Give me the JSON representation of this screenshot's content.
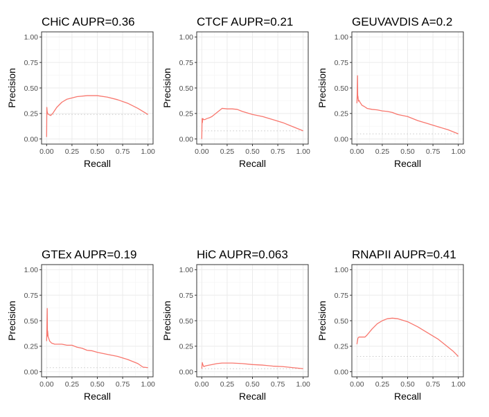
{
  "colors": {
    "curve": "#f8766d",
    "baseline": "#c8c8c8",
    "panel_border": "#333333",
    "grid_major": "#ebebeb",
    "grid_minor": "#f4f4f4",
    "axis_text": "#4d4d4d",
    "title_text": "#000000"
  },
  "chart_data": [
    {
      "type": "line",
      "title": "CHiC AUPR=0.36",
      "xlabel": "Recall",
      "ylabel": "Precision",
      "xlim": [
        0,
        1
      ],
      "ylim": [
        0,
        1
      ],
      "x_ticks": [
        "0.00",
        "0.25",
        "0.50",
        "0.75",
        "1.00"
      ],
      "y_ticks": [
        "0.00",
        "0.25",
        "0.50",
        "0.75",
        "1.00"
      ],
      "grid": true,
      "baseline_precision": 0.24,
      "series": [
        {
          "x": [
            0.0,
            0.002,
            0.005,
            0.01,
            0.02,
            0.04,
            0.06,
            0.08,
            0.1,
            0.15,
            0.2,
            0.3,
            0.4,
            0.5,
            0.6,
            0.7,
            0.8,
            0.9,
            1.0
          ],
          "y": [
            0.02,
            0.31,
            0.27,
            0.25,
            0.24,
            0.23,
            0.25,
            0.28,
            0.31,
            0.36,
            0.39,
            0.415,
            0.425,
            0.425,
            0.41,
            0.385,
            0.35,
            0.3,
            0.24
          ]
        }
      ]
    },
    {
      "type": "line",
      "title": "CTCF AUPR=0.21",
      "xlabel": "Recall",
      "ylabel": "Precision",
      "xlim": [
        0,
        1
      ],
      "ylim": [
        0,
        1
      ],
      "x_ticks": [
        "0.00",
        "0.25",
        "0.50",
        "0.75",
        "1.00"
      ],
      "y_ticks": [
        "0.00",
        "0.25",
        "0.50",
        "0.75",
        "1.00"
      ],
      "grid": true,
      "baseline_precision": 0.08,
      "series": [
        {
          "x": [
            0.0,
            0.003,
            0.006,
            0.01,
            0.02,
            0.03,
            0.05,
            0.08,
            0.1,
            0.15,
            0.2,
            0.25,
            0.3,
            0.35,
            0.4,
            0.5,
            0.6,
            0.7,
            0.8,
            0.9,
            1.0
          ],
          "y": [
            0.0,
            0.2,
            0.16,
            0.2,
            0.19,
            0.19,
            0.2,
            0.21,
            0.22,
            0.26,
            0.3,
            0.295,
            0.295,
            0.29,
            0.27,
            0.24,
            0.22,
            0.19,
            0.16,
            0.12,
            0.08
          ]
        }
      ]
    },
    {
      "type": "line",
      "title": "GEUVAVDIS A=0.2",
      "xlabel": "Recall",
      "ylabel": "Precision",
      "xlim": [
        0,
        1
      ],
      "ylim": [
        0,
        1
      ],
      "x_ticks": [
        "0.00",
        "0.25",
        "0.50",
        "0.75",
        "1.00"
      ],
      "y_ticks": [
        "0.00",
        "0.25",
        "0.50",
        "0.75",
        "1.00"
      ],
      "grid": true,
      "baseline_precision": 0.05,
      "series": [
        {
          "x": [
            0.0,
            0.003,
            0.006,
            0.008,
            0.01,
            0.015,
            0.02,
            0.03,
            0.05,
            0.07,
            0.1,
            0.15,
            0.2,
            0.25,
            0.3,
            0.35,
            0.4,
            0.5,
            0.6,
            0.7,
            0.8,
            0.9,
            1.0
          ],
          "y": [
            0.35,
            0.45,
            0.62,
            0.4,
            0.42,
            0.37,
            0.38,
            0.36,
            0.33,
            0.32,
            0.3,
            0.29,
            0.285,
            0.275,
            0.27,
            0.26,
            0.24,
            0.22,
            0.18,
            0.15,
            0.12,
            0.09,
            0.05
          ]
        }
      ]
    },
    {
      "type": "line",
      "title": "GTEx AUPR=0.19",
      "xlabel": "Recall",
      "ylabel": "Precision",
      "xlim": [
        0,
        1
      ],
      "ylim": [
        0,
        1
      ],
      "x_ticks": [
        "0.00",
        "0.25",
        "0.50",
        "0.75",
        "1.00"
      ],
      "y_ticks": [
        "0.00",
        "0.25",
        "0.50",
        "0.75",
        "1.00"
      ],
      "grid": true,
      "baseline_precision": 0.04,
      "series": [
        {
          "x": [
            0.0,
            0.003,
            0.006,
            0.008,
            0.01,
            0.015,
            0.02,
            0.03,
            0.05,
            0.08,
            0.1,
            0.15,
            0.2,
            0.25,
            0.3,
            0.35,
            0.4,
            0.45,
            0.5,
            0.6,
            0.7,
            0.8,
            0.9,
            0.95,
            1.0
          ],
          "y": [
            0.3,
            0.45,
            0.62,
            0.35,
            0.4,
            0.34,
            0.33,
            0.3,
            0.28,
            0.27,
            0.27,
            0.27,
            0.26,
            0.26,
            0.24,
            0.23,
            0.21,
            0.205,
            0.19,
            0.17,
            0.15,
            0.12,
            0.08,
            0.045,
            0.04
          ]
        }
      ]
    },
    {
      "type": "line",
      "title": "HiC AUPR=0.063",
      "xlabel": "Recall",
      "ylabel": "Precision",
      "xlim": [
        0,
        1
      ],
      "ylim": [
        0,
        1
      ],
      "x_ticks": [
        "0.00",
        "0.25",
        "0.50",
        "0.75",
        "1.00"
      ],
      "y_ticks": [
        "0.00",
        "0.25",
        "0.50",
        "0.75",
        "1.00"
      ],
      "grid": true,
      "baseline_precision": 0.03,
      "series": [
        {
          "x": [
            0.0,
            0.005,
            0.01,
            0.02,
            0.03,
            0.05,
            0.1,
            0.15,
            0.2,
            0.25,
            0.3,
            0.4,
            0.5,
            0.6,
            0.7,
            0.8,
            0.9,
            1.0
          ],
          "y": [
            0.03,
            0.09,
            0.07,
            0.05,
            0.055,
            0.06,
            0.07,
            0.08,
            0.085,
            0.085,
            0.085,
            0.08,
            0.07,
            0.065,
            0.055,
            0.05,
            0.04,
            0.03
          ]
        }
      ]
    },
    {
      "type": "line",
      "title": "RNAPII AUPR=0.41",
      "xlabel": "Recall",
      "ylabel": "Precision",
      "xlim": [
        0,
        1
      ],
      "ylim": [
        0,
        1
      ],
      "x_ticks": [
        "0.00",
        "0.25",
        "0.50",
        "0.75",
        "1.00"
      ],
      "y_ticks": [
        "0.00",
        "0.25",
        "0.50",
        "0.75",
        "1.00"
      ],
      "grid": true,
      "baseline_precision": 0.15,
      "series": [
        {
          "x": [
            0.0,
            0.005,
            0.01,
            0.02,
            0.03,
            0.05,
            0.08,
            0.1,
            0.15,
            0.2,
            0.25,
            0.3,
            0.35,
            0.4,
            0.5,
            0.6,
            0.7,
            0.8,
            0.85,
            0.9,
            0.95,
            1.0
          ],
          "y": [
            0.27,
            0.3,
            0.33,
            0.34,
            0.34,
            0.34,
            0.34,
            0.36,
            0.42,
            0.47,
            0.5,
            0.52,
            0.525,
            0.52,
            0.49,
            0.44,
            0.38,
            0.32,
            0.28,
            0.24,
            0.2,
            0.15
          ]
        }
      ]
    }
  ]
}
